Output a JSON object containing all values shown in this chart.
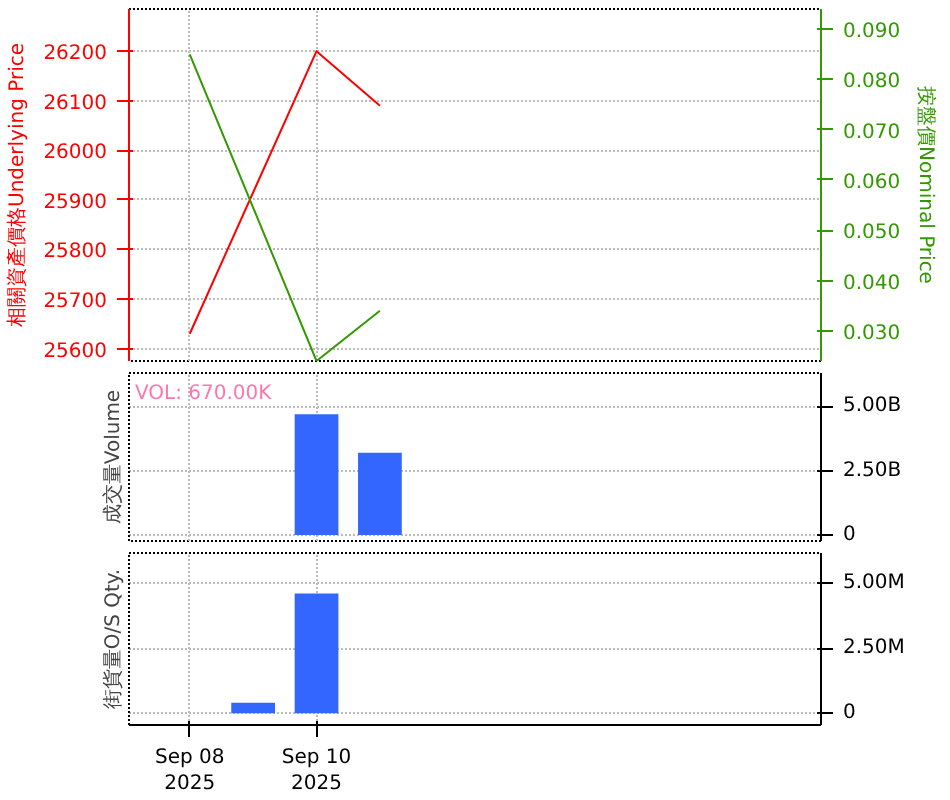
{
  "chart_data": [
    {
      "type": "line",
      "ylabel": "相關資產價格Underlying Price",
      "y2label": "按盤價Nominal Price",
      "tick_labels": "y",
      "xlim": [
        "2025-09-07T01:00",
        "2025-09-17T23:00"
      ],
      "xticks": [
        {
          "value": "2025-09-08",
          "label": null
        },
        {
          "value": "2025-09-10",
          "label": null
        }
      ],
      "ylim": [
        25575,
        26285
      ],
      "yticks": [
        25600,
        25700,
        25800,
        25900,
        26000,
        26100,
        26200
      ],
      "y2lim": [
        0.024,
        0.094
      ],
      "y2ticks": [
        {
          "value": 0.03,
          "label": "0.030"
        },
        {
          "value": 0.04,
          "label": "0.040"
        },
        {
          "value": 0.05,
          "label": "0.050"
        },
        {
          "value": 0.06,
          "label": "0.060"
        },
        {
          "value": 0.07,
          "label": "0.070"
        },
        {
          "value": 0.08,
          "label": "0.080"
        },
        {
          "value": 0.09,
          "label": "0.090"
        }
      ],
      "grid": true,
      "series": [
        {
          "color": "#ff0000",
          "x": [
            "2025-09-08",
            "2025-09-10",
            "2025-09-11"
          ],
          "values": [
            25630,
            26200,
            26090
          ]
        },
        {
          "color": "#339900",
          "axis": "y2",
          "x": [
            "2025-09-08",
            "2025-09-10",
            "2025-09-11"
          ],
          "values": [
            0.085,
            0.024,
            0.034
          ]
        }
      ]
    },
    {
      "type": "bar",
      "ylabel": "成交量Volume",
      "tick_labels": "y",
      "annotations": [
        "VOL: 670.00K"
      ],
      "xlim": [
        "2025-09-07T01:00",
        "2025-09-17T23:00"
      ],
      "xticks": [
        {
          "value": "2025-09-08",
          "label": null
        },
        {
          "value": "2025-09-10",
          "label": null
        }
      ],
      "ylim": [
        -230000000,
        6300000000
      ],
      "yticks": [
        0,
        {
          "value": 2500000000,
          "label": "2.50B"
        },
        {
          "value": 5000000000,
          "label": "5.00B"
        }
      ],
      "grid": true,
      "series": [
        {
          "color": "#3366ff",
          "x": [
            "2025-09-10",
            "2025-09-11"
          ],
          "values": [
            4700000000,
            3200000000
          ]
        }
      ]
    },
    {
      "type": "bar",
      "ylabel": "街貨量O/S Qty.",
      "xlim": [
        "2025-09-07T01:00",
        "2025-09-17T23:00"
      ],
      "xticks": [
        {
          "value": "2025-09-08",
          "label": "Sep 08\n2025"
        },
        {
          "value": "2025-09-10",
          "label": "Sep 10\n2025"
        }
      ],
      "ylim": [
        -450000,
        6150000
      ],
      "yticks": [
        0,
        {
          "value": 2500000,
          "label": "2.50M"
        },
        {
          "value": 5000000,
          "label": "5.00M"
        }
      ],
      "grid": true,
      "series": [
        {
          "color": "#3366ff",
          "x": [
            "2025-09-09",
            "2025-09-10"
          ],
          "values": [
            400000,
            4600000
          ]
        }
      ]
    }
  ]
}
